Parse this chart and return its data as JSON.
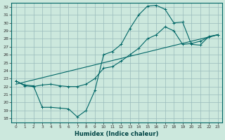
{
  "xlabel": "Humidex (Indice chaleur)",
  "background_color": "#cce8dd",
  "grid_color": "#99bbbb",
  "line_color": "#006666",
  "xlim": [
    -0.5,
    23.5
  ],
  "ylim": [
    17.5,
    32.5
  ],
  "xticks": [
    0,
    1,
    2,
    3,
    4,
    5,
    6,
    7,
    8,
    9,
    10,
    11,
    12,
    13,
    14,
    15,
    16,
    17,
    18,
    19,
    20,
    21,
    22,
    23
  ],
  "yticks": [
    18,
    19,
    20,
    21,
    22,
    23,
    24,
    25,
    26,
    27,
    28,
    29,
    30,
    31,
    32
  ],
  "line1_x": [
    0,
    1,
    2,
    3,
    4,
    5,
    6,
    7,
    8,
    9,
    10,
    11,
    12,
    13,
    14,
    15,
    16,
    17,
    18,
    19,
    20,
    21,
    22,
    23
  ],
  "line1_y": [
    22.7,
    22.2,
    22.1,
    19.4,
    19.4,
    19.3,
    19.2,
    18.2,
    19.0,
    21.5,
    26.0,
    26.4,
    27.3,
    29.3,
    31.0,
    32.1,
    32.2,
    31.7,
    30.0,
    30.1,
    27.3,
    27.2,
    28.3,
    28.5
  ],
  "line2_x": [
    0,
    1,
    2,
    3,
    4,
    5,
    6,
    7,
    8,
    9,
    10,
    11,
    12,
    13,
    14,
    15,
    16,
    17,
    18,
    19,
    20,
    21,
    22,
    23
  ],
  "line2_y": [
    22.7,
    22.1,
    22.0,
    22.2,
    22.3,
    22.1,
    22.0,
    22.0,
    22.3,
    23.0,
    24.3,
    24.5,
    25.2,
    26.0,
    26.8,
    28.0,
    28.5,
    29.5,
    29.0,
    27.3,
    27.4,
    27.7,
    28.2,
    28.5
  ],
  "line3_x": [
    0,
    23
  ],
  "line3_y": [
    22.3,
    28.5
  ]
}
